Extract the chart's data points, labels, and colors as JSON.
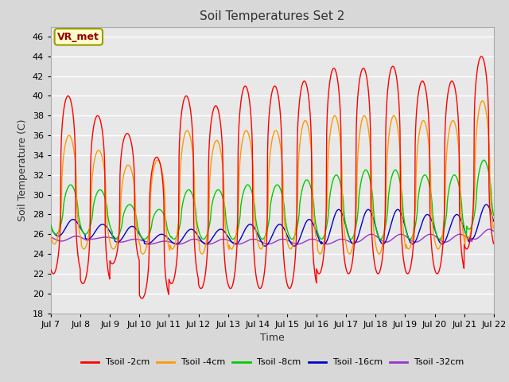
{
  "title": "Soil Temperatures Set 2",
  "xlabel": "Time",
  "ylabel": "Soil Temperature (C)",
  "ylim": [
    18,
    47
  ],
  "yticks": [
    18,
    20,
    22,
    24,
    26,
    28,
    30,
    32,
    34,
    36,
    38,
    40,
    42,
    44,
    46
  ],
  "xtick_labels": [
    "Jul 7",
    "Jul 8",
    "Jul 9",
    "Jul 10",
    "Jul 11",
    "Jul 12",
    "Jul 13",
    "Jul 14",
    "Jul 15",
    "Jul 16",
    "Jul 17",
    "Jul 18",
    "Jul 19",
    "Jul 20",
    "Jul 21",
    "Jul 22"
  ],
  "series_colors": {
    "Tsoil -2cm": "#ff0000",
    "Tsoil -4cm": "#ff9900",
    "Tsoil -8cm": "#00cc00",
    "Tsoil -16cm": "#0000cc",
    "Tsoil -32cm": "#9933cc"
  },
  "legend_label": "VR_met",
  "legend_bbox_facecolor": "#ffffcc",
  "legend_text_color": "#990000",
  "legend_edge_color": "#999900",
  "fig_bg_color": "#d8d8d8",
  "plot_bg_color": "#e8e8e8",
  "grid_color": "#ffffff",
  "n_days": 15,
  "n_per_day": 144,
  "peak_hour": 14.0,
  "trough_hour": 6.0,
  "phase_delay_4cm_hours": 0.8,
  "phase_delay_8cm_hours": 2.0,
  "phase_delay_16cm_hours": 4.0,
  "phase_delay_32cm_hours": 6.5,
  "sharpness_2cm": 3,
  "sharpness_4cm": 2,
  "sharpness_8cm": 1.5,
  "sharpness_16cm": 1,
  "sharpness_32cm": 1,
  "day_peaks_2cm": [
    40.0,
    38.0,
    36.2,
    33.8,
    40.0,
    39.0,
    41.0,
    41.0,
    41.5,
    42.8,
    42.8,
    43.0,
    41.5,
    41.5,
    44.0
  ],
  "day_troughs_2cm": [
    22.0,
    21.0,
    23.0,
    19.5,
    21.0,
    20.5,
    20.5,
    20.5,
    20.5,
    22.0,
    22.0,
    22.0,
    22.0,
    22.0,
    24.5
  ],
  "day_peaks_4cm": [
    36.0,
    34.5,
    33.0,
    33.5,
    36.5,
    35.5,
    36.5,
    36.5,
    37.5,
    38.0,
    38.0,
    38.0,
    37.5,
    37.5,
    39.5
  ],
  "day_troughs_4cm": [
    25.0,
    24.5,
    24.5,
    24.0,
    24.5,
    24.0,
    24.5,
    24.5,
    24.5,
    24.0,
    24.0,
    24.0,
    24.5,
    24.5,
    25.5
  ],
  "day_peaks_8cm": [
    31.0,
    30.5,
    29.0,
    28.5,
    30.5,
    30.5,
    31.0,
    31.0,
    31.5,
    32.0,
    32.5,
    32.5,
    32.0,
    32.0,
    33.5
  ],
  "day_troughs_8cm": [
    26.0,
    26.0,
    25.5,
    25.5,
    25.5,
    25.5,
    25.5,
    25.5,
    25.5,
    25.5,
    25.5,
    25.5,
    25.5,
    25.5,
    26.5
  ],
  "day_peaks_16cm": [
    27.5,
    27.0,
    26.8,
    26.0,
    26.5,
    26.5,
    27.0,
    27.0,
    27.5,
    28.5,
    28.5,
    28.5,
    28.0,
    28.0,
    29.0
  ],
  "day_troughs_16cm": [
    25.8,
    25.5,
    25.2,
    25.0,
    25.0,
    25.0,
    25.0,
    24.8,
    24.8,
    25.0,
    25.0,
    25.0,
    25.0,
    25.0,
    25.5
  ],
  "day_peaks_32cm": [
    25.8,
    25.7,
    25.5,
    25.3,
    25.5,
    25.5,
    25.5,
    25.5,
    25.5,
    25.5,
    26.0,
    26.0,
    26.0,
    26.0,
    26.5
  ],
  "day_troughs_32cm": [
    25.3,
    25.5,
    25.2,
    25.0,
    25.0,
    25.0,
    25.0,
    25.0,
    25.0,
    25.0,
    25.2,
    25.2,
    25.2,
    25.2,
    25.5
  ]
}
